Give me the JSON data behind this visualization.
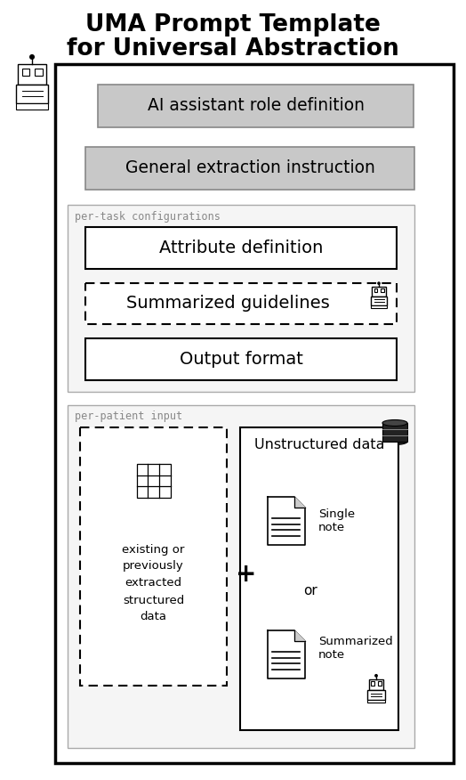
{
  "title_line1": "UMA Prompt Template",
  "title_line2": "for Universal Abstraction",
  "title_fontsize": 19,
  "bg_color": "#ffffff",
  "gray_fill": "#c0c0c0",
  "section_fill": "#f0f0f0",
  "per_task_label": "per-task configurations",
  "attr_def_text": "Attribute definition",
  "summ_guide_text": "Summarized guidelines",
  "output_format_text": "Output format",
  "ai_role_text": "AI assistant role definition",
  "general_extract_text": "General extraction instruction",
  "per_patient_label": "per-patient input",
  "struct_data_text": "existing or\npreviously\nextracted\nstructured\ndata",
  "unstructured_label": "Unstructured data",
  "single_note_label": "Single\nnote",
  "summarized_note_label": "Summarized\nnote",
  "or_text": "or",
  "plus_text": "+"
}
